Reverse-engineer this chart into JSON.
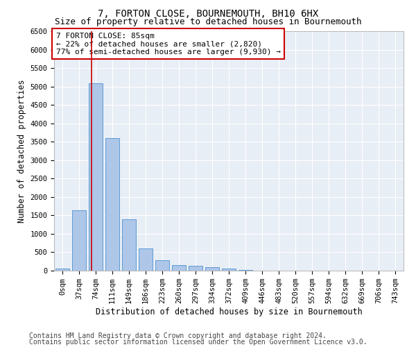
{
  "title": "7, FORTON CLOSE, BOURNEMOUTH, BH10 6HX",
  "subtitle": "Size of property relative to detached houses in Bournemouth",
  "xlabel": "Distribution of detached houses by size in Bournemouth",
  "ylabel": "Number of detached properties",
  "footnote1": "Contains HM Land Registry data © Crown copyright and database right 2024.",
  "footnote2": "Contains public sector information licensed under the Open Government Licence v3.0.",
  "bar_labels": [
    "0sqm",
    "37sqm",
    "74sqm",
    "111sqm",
    "149sqm",
    "186sqm",
    "223sqm",
    "260sqm",
    "297sqm",
    "334sqm",
    "372sqm",
    "409sqm",
    "446sqm",
    "483sqm",
    "520sqm",
    "557sqm",
    "594sqm",
    "632sqm",
    "669sqm",
    "706sqm",
    "743sqm"
  ],
  "bar_values": [
    50,
    1630,
    5080,
    3600,
    1400,
    600,
    290,
    155,
    130,
    90,
    55,
    15,
    0,
    0,
    0,
    0,
    0,
    0,
    0,
    0,
    0
  ],
  "bar_color": "#aec6e8",
  "bar_edge_color": "#5b9bd5",
  "ylim": [
    0,
    6500
  ],
  "yticks": [
    0,
    500,
    1000,
    1500,
    2000,
    2500,
    3000,
    3500,
    4000,
    4500,
    5000,
    5500,
    6000,
    6500
  ],
  "property_bar_index": 2,
  "vline_color": "#cc0000",
  "vline_x_offset": -0.27,
  "annotation_title": "7 FORTON CLOSE: 85sqm",
  "annotation_line1": "← 22% of detached houses are smaller (2,820)",
  "annotation_line2": "77% of semi-detached houses are larger (9,930) →",
  "annotation_box_color": "#ffffff",
  "annotation_box_edge": "#cc0000",
  "fig_bg_color": "#ffffff",
  "plot_bg_color": "#e8eef5",
  "grid_color": "#ffffff",
  "title_fontsize": 10,
  "subtitle_fontsize": 9,
  "axis_label_fontsize": 8.5,
  "tick_fontsize": 7.5,
  "annotation_fontsize": 8,
  "footnote_fontsize": 7
}
